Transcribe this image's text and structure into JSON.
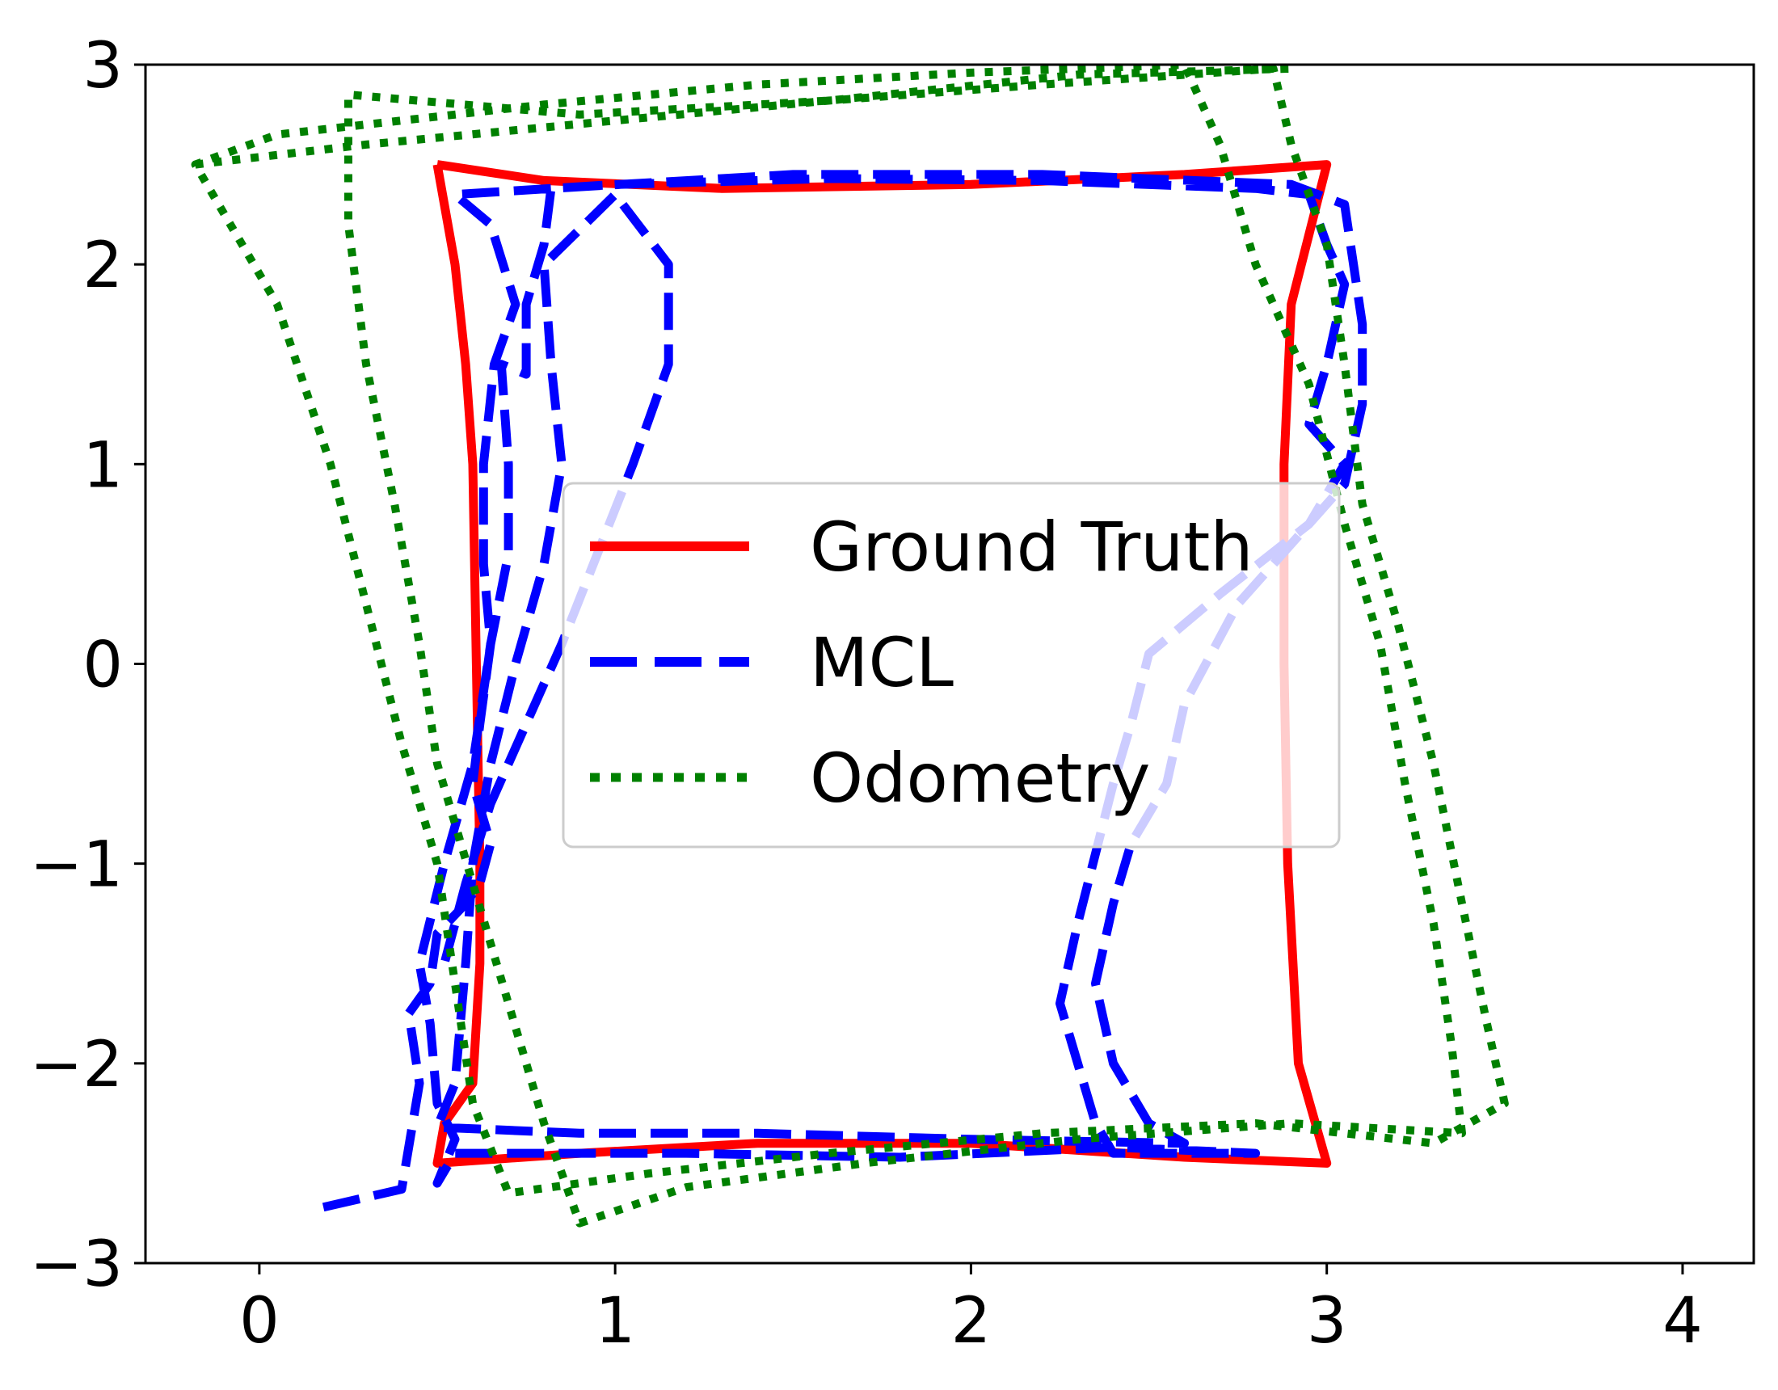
{
  "chart_data": {
    "type": "line",
    "title": "",
    "xlabel": "",
    "ylabel": "",
    "xlim": [
      -0.32,
      4.2
    ],
    "ylim": [
      -3,
      3
    ],
    "x_ticks": [
      0,
      1,
      2,
      3,
      4
    ],
    "x_tick_labels": [
      "0",
      "1",
      "2",
      "3",
      "4"
    ],
    "y_ticks": [
      -3,
      -2,
      -1,
      0,
      1,
      2,
      3
    ],
    "y_tick_labels": [
      "−3",
      "−2",
      "−1",
      "0",
      "1",
      "2",
      "3"
    ],
    "grid": false,
    "legend_position": "center",
    "series": [
      {
        "name": "Ground Truth",
        "color": "#ff0000",
        "style": "solid",
        "points": [
          [
            0.5,
            2.5
          ],
          [
            0.8,
            2.42
          ],
          [
            1.3,
            2.38
          ],
          [
            2.0,
            2.4
          ],
          [
            2.6,
            2.45
          ],
          [
            3.0,
            2.5
          ],
          [
            2.95,
            2.15
          ],
          [
            2.9,
            1.8
          ],
          [
            2.88,
            1.0
          ],
          [
            2.88,
            0.0
          ],
          [
            2.89,
            -1.0
          ],
          [
            2.92,
            -2.0
          ],
          [
            3.0,
            -2.5
          ],
          [
            2.6,
            -2.47
          ],
          [
            2.0,
            -2.4
          ],
          [
            1.4,
            -2.4
          ],
          [
            0.9,
            -2.45
          ],
          [
            0.5,
            -2.5
          ],
          [
            0.52,
            -2.3
          ],
          [
            0.6,
            -2.1
          ],
          [
            0.62,
            -1.5
          ],
          [
            0.62,
            -1.0
          ],
          [
            0.61,
            0.0
          ],
          [
            0.6,
            1.0
          ],
          [
            0.58,
            1.5
          ],
          [
            0.55,
            2.0
          ],
          [
            0.5,
            2.5
          ]
        ]
      },
      {
        "name": "MCL",
        "color": "#0000ff",
        "style": "dashed",
        "points": [
          [
            0.18,
            -2.72
          ],
          [
            0.4,
            -2.63
          ],
          [
            0.45,
            -2.1
          ],
          [
            0.42,
            -1.75
          ],
          [
            0.48,
            -1.6
          ],
          [
            0.5,
            -1.35
          ],
          [
            0.58,
            -1.2
          ],
          [
            0.62,
            -1.1
          ],
          [
            0.65,
            -0.9
          ],
          [
            0.6,
            -0.6
          ],
          [
            0.62,
            -0.3
          ],
          [
            0.65,
            0.1
          ],
          [
            0.63,
            0.5
          ],
          [
            0.63,
            1.0
          ],
          [
            0.66,
            1.5
          ],
          [
            0.72,
            1.8
          ],
          [
            0.65,
            2.2
          ],
          [
            0.55,
            2.35
          ],
          [
            1.0,
            2.4
          ],
          [
            1.6,
            2.43
          ],
          [
            2.2,
            2.42
          ],
          [
            2.8,
            2.38
          ],
          [
            2.95,
            2.35
          ],
          [
            3.0,
            2.1
          ],
          [
            3.05,
            1.9
          ],
          [
            3.0,
            1.5
          ],
          [
            2.95,
            1.2
          ],
          [
            3.05,
            1.0
          ],
          [
            2.95,
            0.7
          ],
          [
            2.7,
            0.35
          ],
          [
            2.5,
            0.05
          ],
          [
            2.45,
            -0.3
          ],
          [
            2.4,
            -0.6
          ],
          [
            2.35,
            -0.95
          ],
          [
            2.3,
            -1.3
          ],
          [
            2.25,
            -1.7
          ],
          [
            2.3,
            -2.0
          ],
          [
            2.35,
            -2.3
          ],
          [
            2.4,
            -2.45
          ],
          [
            2.8,
            -2.45
          ],
          [
            2.4,
            -2.42
          ],
          [
            1.8,
            -2.47
          ],
          [
            1.2,
            -2.45
          ],
          [
            0.55,
            -2.45
          ],
          [
            0.5,
            -2.6
          ],
          [
            0.55,
            -2.38
          ],
          [
            0.5,
            -2.2
          ],
          [
            0.48,
            -1.8
          ],
          [
            0.45,
            -1.5
          ],
          [
            0.52,
            -1.0
          ],
          [
            0.6,
            -0.5
          ],
          [
            0.65,
            0.1
          ],
          [
            0.7,
            0.55
          ],
          [
            0.7,
            1.0
          ],
          [
            0.68,
            1.5
          ],
          [
            0.75,
            1.45
          ],
          [
            0.75,
            1.8
          ],
          [
            0.8,
            2.1
          ],
          [
            0.82,
            2.38
          ],
          [
            1.5,
            2.45
          ],
          [
            2.2,
            2.45
          ],
          [
            2.9,
            2.4
          ],
          [
            3.05,
            2.3
          ],
          [
            3.1,
            1.7
          ],
          [
            3.1,
            1.3
          ],
          [
            3.05,
            0.9
          ],
          [
            2.9,
            0.6
          ],
          [
            2.75,
            0.3
          ],
          [
            2.6,
            -0.2
          ],
          [
            2.55,
            -0.6
          ],
          [
            2.45,
            -0.9
          ],
          [
            2.4,
            -1.2
          ],
          [
            2.35,
            -1.6
          ],
          [
            2.4,
            -2.0
          ],
          [
            2.5,
            -2.3
          ],
          [
            2.6,
            -2.4
          ],
          [
            2.0,
            -2.38
          ],
          [
            1.4,
            -2.35
          ],
          [
            0.9,
            -2.35
          ],
          [
            0.5,
            -2.32
          ],
          [
            0.55,
            -2.1
          ],
          [
            0.58,
            -1.5
          ],
          [
            0.6,
            -1.0
          ],
          [
            0.65,
            -0.5
          ],
          [
            0.72,
            0.0
          ],
          [
            0.8,
            0.5
          ],
          [
            0.85,
            1.0
          ],
          [
            0.82,
            1.5
          ],
          [
            0.8,
            2.0
          ],
          [
            1.0,
            2.35
          ],
          [
            1.15,
            2.0
          ],
          [
            1.15,
            1.5
          ],
          [
            1.05,
            1.0
          ],
          [
            0.95,
            0.55
          ],
          [
            0.85,
            0.1
          ],
          [
            0.75,
            -0.3
          ],
          [
            0.65,
            -0.7
          ],
          [
            0.58,
            -1.1
          ],
          [
            0.52,
            -1.5
          ]
        ]
      },
      {
        "name": "Odometry",
        "color": "#008000",
        "style": "dotted",
        "points": [
          [
            -0.18,
            2.5
          ],
          [
            0.3,
            2.6
          ],
          [
            1.0,
            2.72
          ],
          [
            1.6,
            2.82
          ],
          [
            2.2,
            2.9
          ],
          [
            2.85,
            2.98
          ],
          [
            2.9,
            2.6
          ],
          [
            3.0,
            2.1
          ],
          [
            3.05,
            1.5
          ],
          [
            3.1,
            0.8
          ],
          [
            3.2,
            0.2
          ],
          [
            3.3,
            -0.5
          ],
          [
            3.38,
            -1.2
          ],
          [
            3.45,
            -1.8
          ],
          [
            3.5,
            -2.2
          ],
          [
            3.3,
            -2.4
          ],
          [
            2.8,
            -2.3
          ],
          [
            2.2,
            -2.35
          ],
          [
            1.6,
            -2.45
          ],
          [
            1.1,
            -2.55
          ],
          [
            0.7,
            -2.65
          ],
          [
            0.6,
            -2.2
          ],
          [
            0.55,
            -1.6
          ],
          [
            0.5,
            -1.0
          ],
          [
            0.4,
            -0.4
          ],
          [
            0.3,
            0.3
          ],
          [
            0.2,
            1.0
          ],
          [
            0.05,
            1.8
          ],
          [
            -0.18,
            2.5
          ],
          [
            0.05,
            2.65
          ],
          [
            0.8,
            2.8
          ],
          [
            1.4,
            2.9
          ],
          [
            2.0,
            2.96
          ],
          [
            2.6,
            3.0
          ],
          [
            2.7,
            2.6
          ],
          [
            2.8,
            2.0
          ],
          [
            2.95,
            1.4
          ],
          [
            3.05,
            0.7
          ],
          [
            3.15,
            0.1
          ],
          [
            3.22,
            -0.6
          ],
          [
            3.3,
            -1.3
          ],
          [
            3.35,
            -1.9
          ],
          [
            3.38,
            -2.35
          ],
          [
            2.9,
            -2.3
          ],
          [
            2.3,
            -2.38
          ],
          [
            1.7,
            -2.5
          ],
          [
            1.2,
            -2.62
          ],
          [
            0.9,
            -2.8
          ],
          [
            0.8,
            -2.3
          ],
          [
            0.7,
            -1.7
          ],
          [
            0.6,
            -1.1
          ],
          [
            0.5,
            -0.5
          ],
          [
            0.45,
            0.1
          ],
          [
            0.38,
            0.8
          ],
          [
            0.3,
            1.5
          ],
          [
            0.25,
            2.2
          ],
          [
            0.25,
            2.85
          ],
          [
            0.9,
            2.75
          ],
          [
            1.6,
            2.82
          ],
          [
            2.3,
            2.95
          ],
          [
            2.9,
            2.98
          ]
        ]
      }
    ],
    "legend": [
      {
        "label": "Ground Truth",
        "color": "#ff0000",
        "style": "solid"
      },
      {
        "label": "MCL",
        "color": "#0000ff",
        "style": "dashed"
      },
      {
        "label": "Odometry",
        "color": "#008000",
        "style": "dotted"
      }
    ]
  }
}
